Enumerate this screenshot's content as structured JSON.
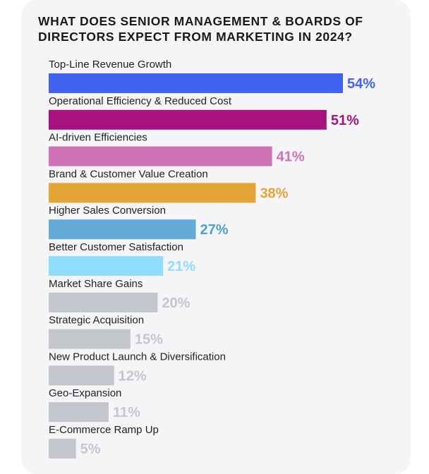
{
  "chart_data": {
    "type": "bar",
    "orientation": "horizontal",
    "title": "WHAT DOES SENIOR MANAGEMENT & BOARDS OF DIRECTORS EXPECT FROM MARKETING IN 2024?",
    "categories": [
      "Top-Line Revenue Growth",
      "Operational Efficiency & Reduced Cost",
      "AI-driven Efficiencies",
      "Brand & Customer Value Creation",
      "Higher Sales Conversion",
      "Better Customer Satisfaction",
      "Market Share Gains",
      "Strategic Acquisition",
      "New Product Launch & Diversification",
      "Geo-Expansion",
      "E-Commerce Ramp Up"
    ],
    "values": [
      54,
      51,
      41,
      38,
      27,
      21,
      20,
      15,
      12,
      11,
      5
    ],
    "value_labels": [
      "54%",
      "51%",
      "41%",
      "38%",
      "27%",
      "21%",
      "20%",
      "15%",
      "12%",
      "11%",
      "5%"
    ],
    "unit": "%",
    "xlim": [
      0,
      54
    ],
    "grid": false,
    "legend": "none",
    "colors": [
      "#4262f0",
      "#a8127e",
      "#cf72b6",
      "#e3a535",
      "#63acd9",
      "#8fdcfb",
      "#c3c6cc",
      "#c3c6cc",
      "#c3c6cc",
      "#c3c6cc",
      "#c3c6cc"
    ],
    "label_colors": [
      "#4262f0",
      "#a8127e",
      "#cf72b6",
      "#e3a535",
      "#4da0cf",
      "#8fdcfb",
      "#c3c6cc",
      "#c3c6cc",
      "#c3c6cc",
      "#c3c6cc",
      "#c3c6cc"
    ]
  }
}
